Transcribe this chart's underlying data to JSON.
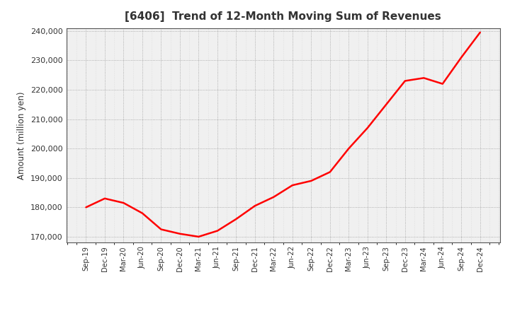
{
  "title": "[6406]  Trend of 12-Month Moving Sum of Revenues",
  "ylabel": "Amount (million yen)",
  "line_color": "#ff0000",
  "line_width": 1.8,
  "background_color": "#ffffff",
  "plot_bg_color": "#f0f0f0",
  "grid_color_major": "#888888",
  "grid_color_minor": "#cccccc",
  "title_color": "#333333",
  "ylim": [
    168000,
    241000
  ],
  "yticks": [
    170000,
    180000,
    190000,
    200000,
    210000,
    220000,
    230000,
    240000
  ],
  "x_labels": [
    "Sep-19",
    "Dec-19",
    "Mar-20",
    "Jun-20",
    "Sep-20",
    "Dec-20",
    "Mar-21",
    "Jun-21",
    "Sep-21",
    "Dec-21",
    "Mar-22",
    "Jun-22",
    "Sep-22",
    "Dec-22",
    "Mar-23",
    "Jun-23",
    "Sep-23",
    "Dec-23",
    "Mar-24",
    "Jun-24",
    "Sep-24",
    "Dec-24"
  ],
  "values": [
    180000,
    183000,
    181500,
    178000,
    172500,
    171000,
    170000,
    172000,
    176000,
    180500,
    183500,
    187500,
    189000,
    192000,
    200000,
    207000,
    215000,
    223000,
    224000,
    222000,
    231000,
    239500
  ]
}
